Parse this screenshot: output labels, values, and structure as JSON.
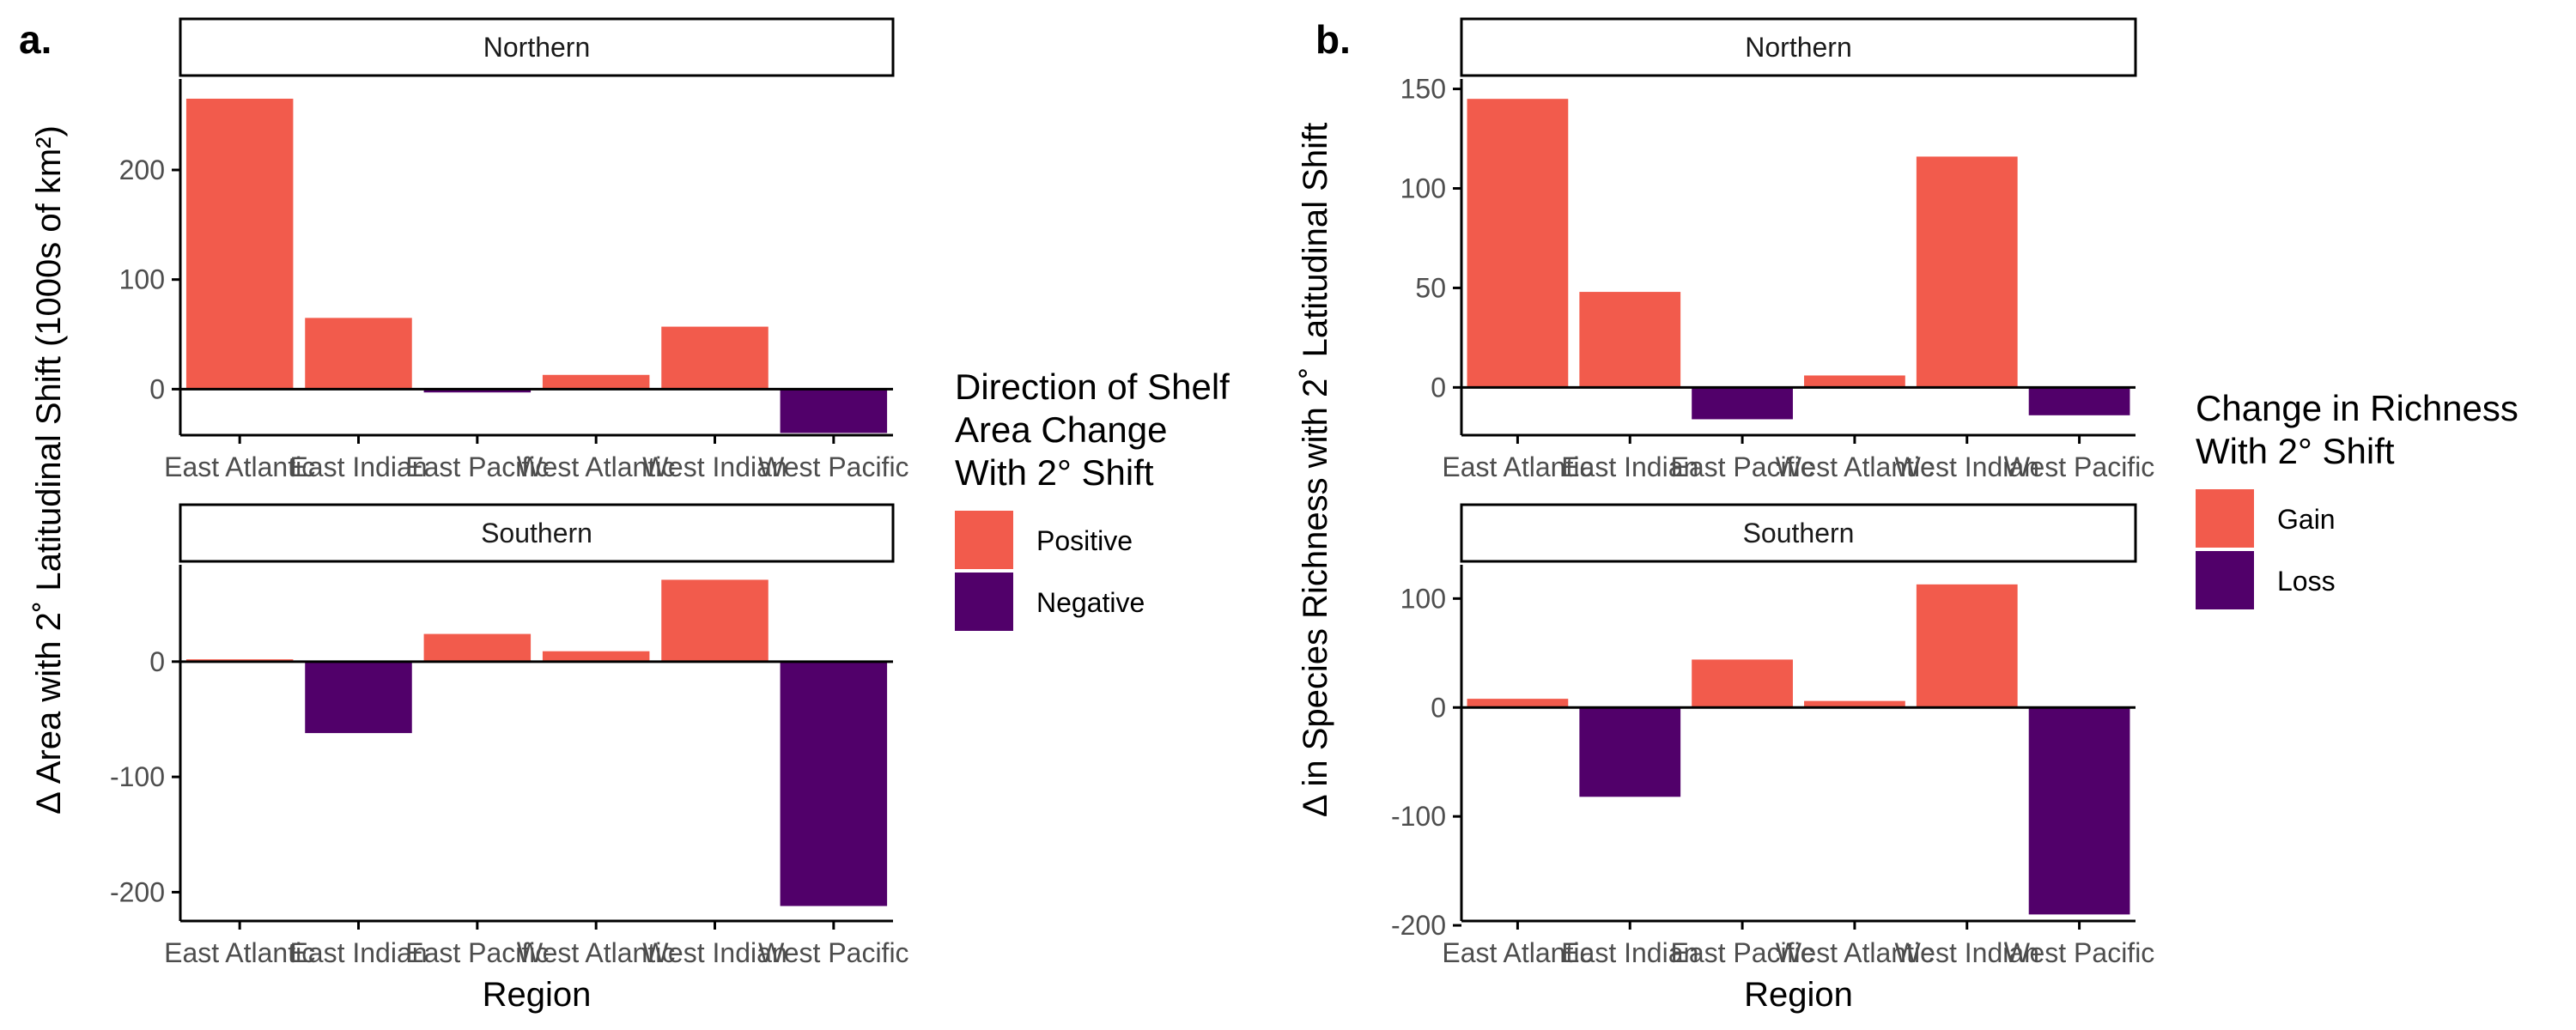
{
  "colors": {
    "positive": "#F25B4C",
    "negative": "#51006A",
    "axis": "#000000",
    "tick_text": "#4D4D4D"
  },
  "chart_data": [
    {
      "type": "bar",
      "panel_tag": "a.",
      "ylabel": "Δ Area with 2˚ Latitudinal Shift (1000s of km²)",
      "xlabel": "Region",
      "categories": [
        "East Atlantic",
        "East Indian",
        "East Pacific",
        "West Atlantic",
        "West Indian",
        "West Pacific"
      ],
      "legend": {
        "title_lines": [
          "Direction of Shelf",
          "Area Change",
          "With 2° Shift"
        ],
        "items": [
          {
            "label": "Positive",
            "color": "#F25B4C"
          },
          {
            "label": "Negative",
            "color": "#51006A"
          }
        ],
        "position": "right"
      },
      "facets": [
        {
          "strip": "Northern",
          "values": [
            265,
            65,
            -3,
            13,
            57,
            -40
          ],
          "ylim": [
            -42,
            283
          ],
          "yticks": [
            0,
            100,
            200
          ],
          "ytick_labels": [
            "0",
            "100",
            "200"
          ]
        },
        {
          "strip": "Southern",
          "values": [
            2,
            -62,
            24,
            9,
            71,
            -212
          ],
          "ylim": [
            -225,
            84
          ],
          "yticks": [
            -200,
            -100,
            0
          ],
          "ytick_labels": [
            "-200",
            "-100",
            "0"
          ]
        }
      ]
    },
    {
      "type": "bar",
      "panel_tag": "b.",
      "ylabel": "Δ in Species Richness with 2˚ Latitudinal Shift",
      "xlabel": "Region",
      "categories": [
        "East Atlantic",
        "East Indian",
        "East Pacific",
        "West Atlantic",
        "West Indian",
        "West Pacific"
      ],
      "legend": {
        "title_lines": [
          "Change in Richness",
          "With 2° Shift"
        ],
        "items": [
          {
            "label": "Gain",
            "color": "#F25B4C"
          },
          {
            "label": "Loss",
            "color": "#51006A"
          }
        ],
        "position": "right"
      },
      "facets": [
        {
          "strip": "Northern",
          "values": [
            145,
            48,
            -16,
            6,
            116,
            -14
          ],
          "ylim": [
            -24,
            155
          ],
          "yticks": [
            0,
            50,
            100,
            150
          ],
          "ytick_labels": [
            "0",
            "50",
            "100",
            "150"
          ]
        },
        {
          "strip": "Southern",
          "values": [
            8,
            -82,
            44,
            6,
            113,
            -190
          ],
          "ylim": [
            -196,
            131
          ],
          "yticks": [
            -200,
            -100,
            0,
            100
          ],
          "ytick_labels": [
            "-200",
            "-100",
            "0",
            "100"
          ]
        }
      ]
    }
  ]
}
